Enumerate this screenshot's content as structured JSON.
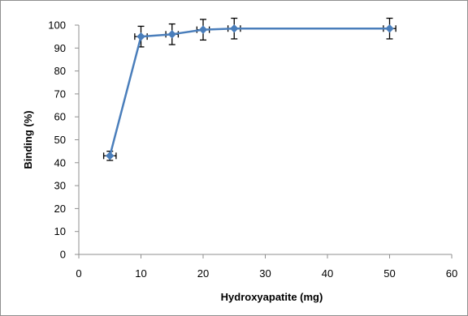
{
  "chart_data": {
    "type": "line",
    "title": "",
    "xlabel": "Hydroxyapatite (mg)",
    "ylabel": "Binding (%)",
    "xlim": [
      0,
      60
    ],
    "ylim": [
      0,
      100
    ],
    "x_ticks": [
      0,
      10,
      20,
      30,
      40,
      50,
      60
    ],
    "y_ticks": [
      0,
      10,
      20,
      30,
      40,
      50,
      60,
      70,
      80,
      90,
      100
    ],
    "grid": "none",
    "legend": "none",
    "series": [
      {
        "color": "#4a7ebb",
        "marker": "diamond",
        "points": [
          {
            "x": 5,
            "y": 43,
            "y_err": 2,
            "x_err": 1
          },
          {
            "x": 10,
            "y": 95,
            "y_err": 4.5,
            "x_err": 1
          },
          {
            "x": 15,
            "y": 96,
            "y_err": 4.5,
            "x_err": 1
          },
          {
            "x": 20,
            "y": 98,
            "y_err": 4.5,
            "x_err": 1
          },
          {
            "x": 25,
            "y": 98.5,
            "y_err": 4.5,
            "x_err": 1
          },
          {
            "x": 50,
            "y": 98.5,
            "y_err": 4.5,
            "x_err": 1
          }
        ]
      }
    ]
  }
}
